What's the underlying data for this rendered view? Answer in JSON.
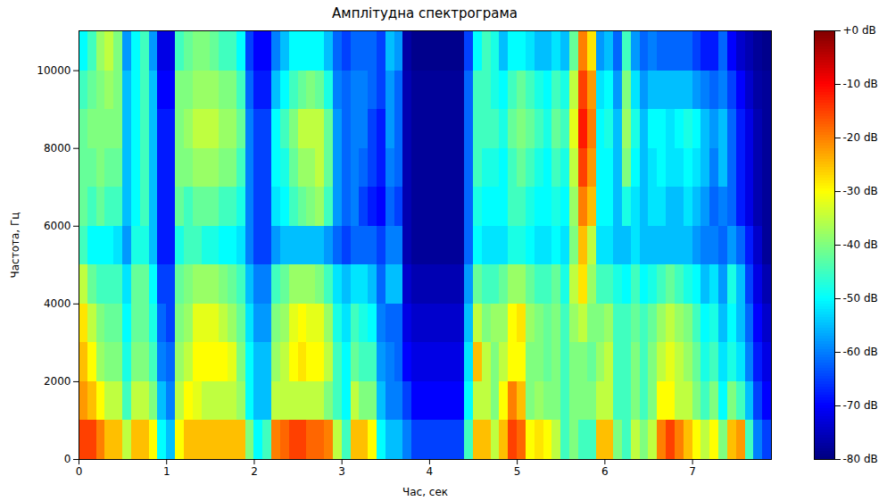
{
  "chart_data": {
    "type": "heatmap",
    "title": "Амплітудна спектрограма",
    "x_label": "Час, сек",
    "y_label": "Частота, Гц",
    "xlim": [
      0,
      7.9
    ],
    "ylim": [
      0,
      11025
    ],
    "xticks": [
      0,
      1,
      2,
      3,
      4,
      5,
      6,
      7
    ],
    "yticks": [
      0,
      2000,
      4000,
      6000,
      8000,
      10000
    ],
    "x_edges": [
      0,
      0.1,
      0.2,
      0.3,
      0.4,
      0.5,
      0.6,
      0.7,
      0.8,
      0.9,
      1,
      1.1,
      1.2,
      1.3,
      1.4,
      1.5,
      1.6,
      1.7,
      1.8,
      1.9,
      2,
      2.1,
      2.2,
      2.3,
      2.4,
      2.5,
      2.6,
      2.7,
      2.8,
      2.9,
      3,
      3.1,
      3.2,
      3.3,
      3.4,
      3.5,
      3.6,
      3.7,
      3.8,
      3.9,
      4,
      4.1,
      4.2,
      4.3,
      4.4,
      4.5,
      4.6,
      4.7,
      4.8,
      4.9,
      5,
      5.1,
      5.2,
      5.3,
      5.4,
      5.5,
      5.6,
      5.7,
      5.8,
      5.9,
      6,
      6.1,
      6.2,
      6.3,
      6.4,
      6.5,
      6.6,
      6.7,
      6.8,
      6.9,
      7,
      7.1,
      7.2,
      7.3,
      7.4,
      7.5,
      7.6,
      7.7,
      7.8,
      7.9
    ],
    "y_edges": [
      0,
      1000,
      2000,
      3000,
      4000,
      5000,
      6000,
      7000,
      8000,
      9000,
      10000,
      11025
    ],
    "cells": [
      [
        -15,
        -15,
        -20,
        -25,
        -25,
        -35,
        -25,
        -25,
        -30,
        -50,
        -55,
        -30,
        -25,
        -25,
        -25,
        -25,
        -25,
        -25,
        -25,
        -40,
        -50,
        -45,
        -20,
        -18,
        -15,
        -15,
        -18,
        -18,
        -20,
        -35,
        -45,
        -25,
        -25,
        -30,
        -50,
        -55,
        -55,
        -60,
        -65,
        -65,
        -65,
        -65,
        -65,
        -65,
        -45,
        -25,
        -25,
        -35,
        -25,
        -15,
        -18,
        -30,
        -28,
        -30,
        -35,
        -45,
        -40,
        -45,
        -45,
        -25,
        -25,
        -40,
        -45,
        -35,
        -40,
        -35,
        -20,
        -15,
        -20,
        -25,
        -30,
        -35,
        -30,
        -40,
        -25,
        -22,
        -45,
        -60,
        -65
      ],
      [
        -22,
        -25,
        -30,
        -35,
        -35,
        -45,
        -35,
        -35,
        -40,
        -55,
        -60,
        -35,
        -30,
        -32,
        -35,
        -35,
        -35,
        -35,
        -38,
        -50,
        -55,
        -55,
        -35,
        -35,
        -35,
        -35,
        -35,
        -35,
        -40,
        -45,
        -50,
        -35,
        -40,
        -40,
        -55,
        -60,
        -60,
        -65,
        -70,
        -70,
        -70,
        -70,
        -70,
        -70,
        -50,
        -35,
        -35,
        -40,
        -30,
        -20,
        -25,
        -40,
        -38,
        -40,
        -40,
        -45,
        -40,
        -40,
        -40,
        -35,
        -35,
        -45,
        -45,
        -40,
        -45,
        -40,
        -30,
        -30,
        -35,
        -35,
        -40,
        -45,
        -40,
        -50,
        -40,
        -45,
        -55,
        -65,
        -70
      ],
      [
        -25,
        -30,
        -38,
        -40,
        -40,
        -48,
        -40,
        -40,
        -45,
        -60,
        -62,
        -38,
        -35,
        -30,
        -30,
        -30,
        -30,
        -32,
        -40,
        -50,
        -55,
        -55,
        -38,
        -35,
        -30,
        -28,
        -30,
        -30,
        -35,
        -45,
        -50,
        -42,
        -45,
        -45,
        -58,
        -60,
        -62,
        -70,
        -72,
        -72,
        -72,
        -72,
        -72,
        -72,
        -52,
        -25,
        -35,
        -40,
        -35,
        -30,
        -30,
        -40,
        -40,
        -42,
        -40,
        -45,
        -40,
        -40,
        -42,
        -38,
        -35,
        -45,
        -45,
        -40,
        -45,
        -40,
        -35,
        -32,
        -35,
        -38,
        -42,
        -48,
        -45,
        -52,
        -48,
        -52,
        -60,
        -68,
        -72
      ],
      [
        -28,
        -35,
        -40,
        -42,
        -42,
        -50,
        -42,
        -42,
        -48,
        -62,
        -65,
        -40,
        -38,
        -32,
        -32,
        -32,
        -35,
        -38,
        -42,
        -52,
        -58,
        -58,
        -40,
        -38,
        -32,
        -30,
        -32,
        -32,
        -38,
        -48,
        -52,
        -45,
        -48,
        -50,
        -60,
        -62,
        -62,
        -72,
        -74,
        -74,
        -74,
        -74,
        -74,
        -74,
        -55,
        -35,
        -40,
        -38,
        -38,
        -30,
        -28,
        -38,
        -40,
        -42,
        -40,
        -45,
        -38,
        -35,
        -40,
        -40,
        -38,
        -45,
        -45,
        -42,
        -45,
        -42,
        -38,
        -35,
        -38,
        -40,
        -45,
        -50,
        -48,
        -55,
        -50,
        -55,
        -62,
        -70,
        -74
      ],
      [
        -35,
        -42,
        -45,
        -45,
        -45,
        -52,
        -42,
        -42,
        -50,
        -65,
        -65,
        -42,
        -40,
        -38,
        -38,
        -38,
        -40,
        -42,
        -45,
        -55,
        -60,
        -60,
        -45,
        -42,
        -38,
        -38,
        -38,
        -40,
        -45,
        -52,
        -55,
        -52,
        -52,
        -55,
        -62,
        -55,
        -55,
        -74,
        -76,
        -76,
        -76,
        -76,
        -76,
        -76,
        -58,
        -42,
        -45,
        -45,
        -42,
        -38,
        -38,
        -42,
        -45,
        -45,
        -42,
        -48,
        -35,
        -28,
        -38,
        -45,
        -45,
        -48,
        -50,
        -45,
        -50,
        -48,
        -45,
        -42,
        -45,
        -48,
        -50,
        -55,
        -52,
        -58,
        -48,
        -55,
        -65,
        -72,
        -76
      ],
      [
        -45,
        -50,
        -50,
        -50,
        -52,
        -58,
        -48,
        -48,
        -55,
        -68,
        -68,
        -48,
        -45,
        -45,
        -48,
        -48,
        -50,
        -50,
        -52,
        -60,
        -65,
        -65,
        -58,
        -55,
        -55,
        -55,
        -55,
        -55,
        -58,
        -62,
        -65,
        -62,
        -62,
        -62,
        -65,
        -60,
        -60,
        -76,
        -78,
        -78,
        -78,
        -78,
        -78,
        -78,
        -62,
        -50,
        -52,
        -52,
        -52,
        -48,
        -48,
        -50,
        -52,
        -52,
        -50,
        -52,
        -40,
        -25,
        -35,
        -52,
        -52,
        -55,
        -55,
        -52,
        -55,
        -55,
        -55,
        -55,
        -55,
        -55,
        -58,
        -60,
        -60,
        -62,
        -58,
        -62,
        -68,
        -74,
        -78
      ],
      [
        -42,
        -45,
        -42,
        -45,
        -45,
        -55,
        -50,
        -45,
        -55,
        -68,
        -68,
        -42,
        -45,
        -42,
        -42,
        -42,
        -45,
        -45,
        -48,
        -60,
        -65,
        -65,
        -52,
        -50,
        -45,
        -42,
        -40,
        -38,
        -45,
        -58,
        -62,
        -60,
        -65,
        -68,
        -70,
        -62,
        -65,
        -76,
        -78,
        -78,
        -78,
        -78,
        -78,
        -78,
        -62,
        -48,
        -50,
        -50,
        -50,
        -45,
        -45,
        -48,
        -50,
        -50,
        -48,
        -50,
        -38,
        -20,
        -25,
        -50,
        -50,
        -55,
        -48,
        -52,
        -55,
        -52,
        -52,
        -55,
        -55,
        -52,
        -55,
        -58,
        -62,
        -60,
        -62,
        -68,
        -72,
        -76,
        -78
      ],
      [
        -42,
        -42,
        -40,
        -42,
        -42,
        -55,
        -50,
        -45,
        -55,
        -68,
        -68,
        -40,
        -40,
        -38,
        -38,
        -38,
        -40,
        -40,
        -45,
        -60,
        -65,
        -65,
        -50,
        -48,
        -42,
        -38,
        -38,
        -35,
        -42,
        -58,
        -62,
        -60,
        -62,
        -65,
        -68,
        -60,
        -62,
        -76,
        -78,
        -78,
        -78,
        -78,
        -78,
        -78,
        -62,
        -45,
        -48,
        -48,
        -50,
        -45,
        -42,
        -45,
        -48,
        -50,
        -45,
        -48,
        -35,
        -15,
        -22,
        -50,
        -50,
        -55,
        -40,
        -50,
        -55,
        -52,
        -50,
        -52,
        -52,
        -50,
        -52,
        -55,
        -60,
        -55,
        -62,
        -68,
        -72,
        -76,
        -78
      ],
      [
        -42,
        -40,
        -40,
        -40,
        -40,
        -55,
        -50,
        -45,
        -55,
        -68,
        -68,
        -40,
        -38,
        -35,
        -35,
        -35,
        -38,
        -38,
        -42,
        -60,
        -65,
        -65,
        -50,
        -45,
        -40,
        -35,
        -35,
        -35,
        -42,
        -58,
        -62,
        -60,
        -60,
        -65,
        -68,
        -58,
        -62,
        -76,
        -78,
        -78,
        -78,
        -78,
        -78,
        -78,
        -62,
        -45,
        -45,
        -45,
        -48,
        -42,
        -40,
        -42,
        -45,
        -48,
        -42,
        -45,
        -32,
        -12,
        -20,
        -50,
        -48,
        -55,
        -38,
        -48,
        -55,
        -50,
        -50,
        -52,
        -50,
        -48,
        -50,
        -55,
        -58,
        -55,
        -62,
        -68,
        -72,
        -76,
        -78
      ],
      [
        -45,
        -42,
        -40,
        -38,
        -40,
        -55,
        -50,
        -45,
        -55,
        -70,
        -70,
        -40,
        -40,
        -38,
        -38,
        -38,
        -40,
        -40,
        -45,
        -62,
        -68,
        -68,
        -55,
        -50,
        -45,
        -42,
        -40,
        -42,
        -48,
        -60,
        -62,
        -60,
        -60,
        -62,
        -65,
        -58,
        -62,
        -76,
        -78,
        -78,
        -78,
        -78,
        -78,
        -78,
        -62,
        -45,
        -45,
        -48,
        -50,
        -45,
        -42,
        -45,
        -48,
        -50,
        -45,
        -48,
        -35,
        -15,
        -22,
        -52,
        -50,
        -58,
        -40,
        -52,
        -58,
        -55,
        -55,
        -55,
        -55,
        -55,
        -58,
        -60,
        -62,
        -60,
        -65,
        -70,
        -74,
        -77,
        -78
      ],
      [
        -50,
        -45,
        -38,
        -35,
        -40,
        -58,
        -50,
        -45,
        -58,
        -72,
        -72,
        -45,
        -42,
        -40,
        -40,
        -42,
        -45,
        -45,
        -50,
        -65,
        -70,
        -70,
        -60,
        -55,
        -50,
        -50,
        -50,
        -50,
        -55,
        -62,
        -65,
        -62,
        -62,
        -62,
        -65,
        -55,
        -58,
        -77,
        -79,
        -79,
        -79,
        -79,
        -79,
        -79,
        -65,
        -50,
        -45,
        -48,
        -55,
        -50,
        -50,
        -52,
        -55,
        -55,
        -52,
        -55,
        -42,
        -20,
        -28,
        -58,
        -55,
        -62,
        -45,
        -58,
        -62,
        -60,
        -62,
        -62,
        -62,
        -62,
        -65,
        -68,
        -68,
        -62,
        -70,
        -74,
        -76,
        -78,
        -79
      ]
    ],
    "colorbar": {
      "range": [
        -80,
        0
      ],
      "ticks": [
        {
          "value": 0,
          "label": "+0 dB"
        },
        {
          "value": -10,
          "label": "-10 dB"
        },
        {
          "value": -20,
          "label": "-20 dB"
        },
        {
          "value": -30,
          "label": "-30 dB"
        },
        {
          "value": -40,
          "label": "-40 dB"
        },
        {
          "value": -50,
          "label": "-50 dB"
        },
        {
          "value": -60,
          "label": "-60 dB"
        },
        {
          "value": -70,
          "label": "-70 dB"
        },
        {
          "value": -80,
          "label": "-80 dB"
        }
      ],
      "colors": [
        "#00007f",
        "#0000ff",
        "#007fff",
        "#00ffff",
        "#7fff7f",
        "#ffff00",
        "#ff7f00",
        "#ff0000",
        "#7f0000"
      ]
    }
  }
}
